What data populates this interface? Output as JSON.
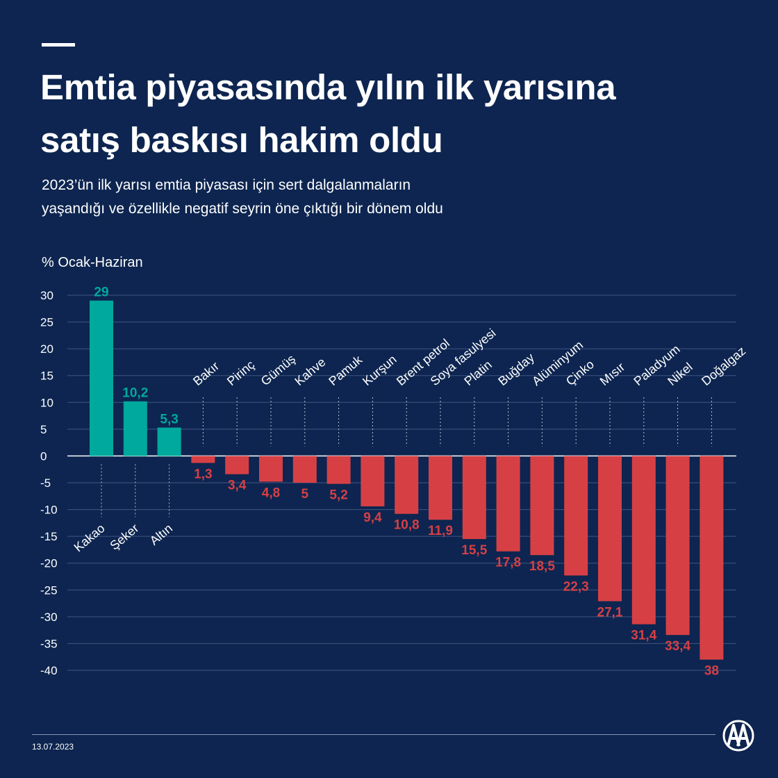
{
  "header": {
    "title_line1": "Emtia piyasasında yılın ilk yarısına",
    "title_line2": "satış baskısı hakim oldu",
    "subtitle_line1": "2023’ün ilk yarısı emtia piyasası için sert dalgalanmaların",
    "subtitle_line2": "yaşandığı ve özellikle negatif seyrin öne çıktığı bir dönem oldu"
  },
  "unit_label": "% Ocak-Haziran",
  "footer": {
    "date": "13.07.2023",
    "logo_icon": "aa-logo-icon"
  },
  "colors": {
    "background": "#0d2550",
    "positive": "#00a99d",
    "negative": "#d64045",
    "grid": "#3e5680"
  },
  "chart_data": {
    "type": "bar",
    "ylim": [
      -40,
      30
    ],
    "yticks": [
      30,
      25,
      20,
      15,
      10,
      5,
      0,
      -5,
      -10,
      -15,
      -20,
      -25,
      -30,
      -35,
      -40
    ],
    "grid": true,
    "categories": [
      "Kakao",
      "Şeker",
      "Altın",
      "Bakır",
      "Pirinç",
      "Gümüş",
      "Kahve",
      "Pamuk",
      "Kurşun",
      "Brent petrol",
      "Soya fasulyesi",
      "Platin",
      "Buğday",
      "Alüminyum",
      "Çinko",
      "Mısır",
      "Paladyum",
      "Nikel",
      "Doğalgaz"
    ],
    "values": [
      29,
      10.2,
      5.3,
      -1.3,
      -3.4,
      -4.8,
      -5,
      -5.2,
      -9.4,
      -10.8,
      -11.9,
      -15.5,
      -17.8,
      -18.5,
      -22.3,
      -27.1,
      -31.4,
      -33.4,
      -38
    ],
    "labels": [
      "29",
      "10,2",
      "5,3",
      "1,3",
      "3,4",
      "4,8",
      "5",
      "5,2",
      "9,4",
      "10,8",
      "11,9",
      "15,5",
      "17,8",
      "18,5",
      "22,3",
      "27,1",
      "31,4",
      "33,4",
      "38"
    ]
  }
}
